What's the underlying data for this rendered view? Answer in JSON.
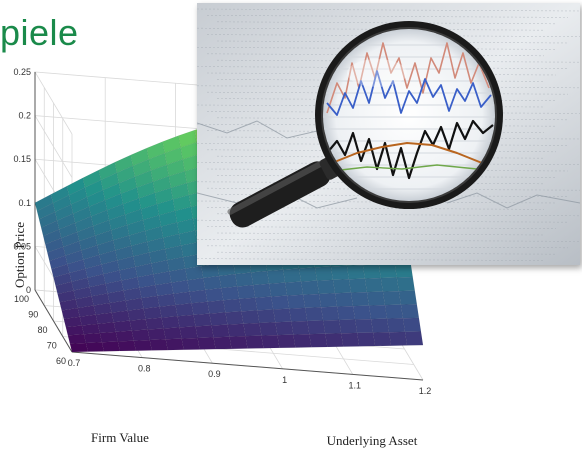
{
  "slide": {
    "title_fragment": "piele"
  },
  "chart_data": {
    "type": "surface",
    "title": "",
    "xlabel": "Underlying Asset",
    "ylabel": "Firm Value",
    "zlabel": "Option Price",
    "x_ticks": [
      0.7,
      0.8,
      0.9,
      1,
      1.1,
      1.2
    ],
    "y_ticks": [
      60,
      70,
      80,
      90,
      100
    ],
    "z_ticks": [
      0,
      0.05,
      0.1,
      0.15,
      0.2,
      0.25
    ],
    "xlim": [
      0.7,
      1.2
    ],
    "ylim": [
      60,
      100
    ],
    "zlim": [
      0,
      0.25
    ],
    "corner_values": [
      {
        "x": 0.7,
        "y": 100,
        "z": 0.1
      },
      {
        "x": 0.7,
        "y": 60,
        "z": 0.0
      },
      {
        "x": 1.2,
        "y": 60,
        "z": 0.04
      },
      {
        "x": 1.2,
        "y": 100,
        "z": 0.25
      }
    ],
    "colormap": [
      "#440154",
      "#3b528b",
      "#21918c",
      "#5ec962",
      "#fde725"
    ],
    "grid": true
  },
  "photo": {
    "description_icon": "magnifier-over-stock-charts-icon"
  }
}
